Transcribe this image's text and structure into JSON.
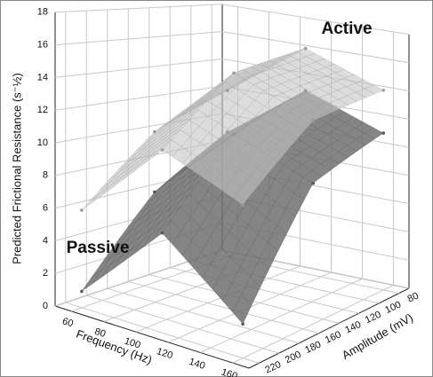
{
  "chart_data": {
    "type": "surface3d",
    "zlabel": "Predicted Frictional Resistance (s⁻½)",
    "xlabel": "Frequency (Hz)",
    "ylabel": "Amplitude (mV)",
    "x": [
      60,
      110,
      160
    ],
    "y": [
      80,
      150,
      220
    ],
    "series": [
      {
        "name": "Passive",
        "color": "#707070",
        "z": [
          [
            9,
            6,
            1
          ],
          [
            13,
            11,
            6
          ],
          [
            11,
            9,
            2
          ]
        ]
      },
      {
        "name": "Active",
        "color": "#c4c4c4",
        "z": [
          [
            12,
            10,
            6
          ],
          [
            16,
            15,
            11
          ],
          [
            14,
            13,
            9
          ]
        ]
      }
    ],
    "xlim": [
      50,
      170
    ],
    "ylim": [
      230,
      70
    ],
    "zlim": [
      0,
      18
    ],
    "xticks": [
      60,
      80,
      100,
      120,
      140,
      160
    ],
    "yticks": [
      80,
      100,
      120,
      140,
      160,
      180,
      200,
      220
    ],
    "zticks": [
      0,
      2,
      4,
      6,
      8,
      10,
      12,
      14,
      16,
      18
    ],
    "grid": true
  }
}
